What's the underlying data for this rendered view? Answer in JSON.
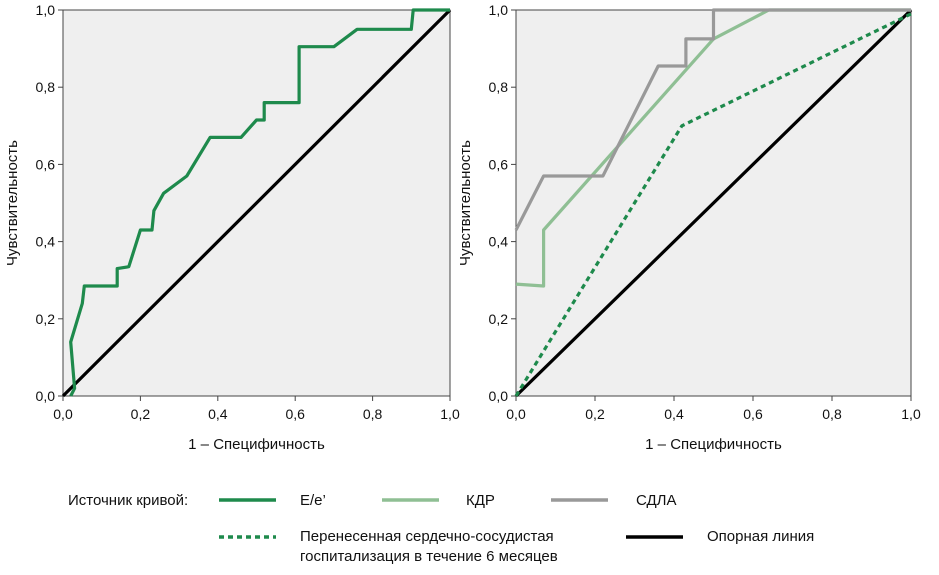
{
  "chart_data": [
    {
      "type": "line",
      "xlabel": "1 – Специфичность",
      "ylabel": "Чувствительность",
      "xlim": [
        0,
        1
      ],
      "ylim": [
        0,
        1
      ],
      "tick_labels": [
        "0,0",
        "0,2",
        "0,4",
        "0,6",
        "0,8",
        "1,0"
      ],
      "grid": false,
      "series": [
        {
          "name": "E/e’",
          "color": "#1e8a4c",
          "style": "solid",
          "points": [
            [
              0.02,
              0.0
            ],
            [
              0.03,
              0.02
            ],
            [
              0.02,
              0.14
            ],
            [
              0.05,
              0.24
            ],
            [
              0.055,
              0.285
            ],
            [
              0.06,
              0.285
            ],
            [
              0.14,
              0.285
            ],
            [
              0.14,
              0.33
            ],
            [
              0.17,
              0.335
            ],
            [
              0.2,
              0.43
            ],
            [
              0.23,
              0.43
            ],
            [
              0.235,
              0.48
            ],
            [
              0.26,
              0.525
            ],
            [
              0.32,
              0.57
            ],
            [
              0.38,
              0.67
            ],
            [
              0.46,
              0.67
            ],
            [
              0.5,
              0.715
            ],
            [
              0.52,
              0.715
            ],
            [
              0.52,
              0.76
            ],
            [
              0.61,
              0.76
            ],
            [
              0.61,
              0.905
            ],
            [
              0.7,
              0.905
            ],
            [
              0.76,
              0.95
            ],
            [
              0.9,
              0.95
            ],
            [
              0.905,
              1.0
            ],
            [
              1.0,
              1.0
            ]
          ]
        },
        {
          "name": "Опорная линия",
          "color": "#000000",
          "style": "solid",
          "points": [
            [
              0,
              0
            ],
            [
              1,
              1
            ]
          ]
        }
      ]
    },
    {
      "type": "line",
      "xlabel": "1 – Специфичность",
      "ylabel": "Чувствительность",
      "xlim": [
        0,
        1
      ],
      "ylim": [
        0,
        1
      ],
      "tick_labels": [
        "0,0",
        "0,2",
        "0,4",
        "0,6",
        "0,8",
        "1,0"
      ],
      "grid": false,
      "series": [
        {
          "name": "КДР",
          "color": "#8fbf94",
          "style": "solid",
          "points": [
            [
              0,
              0.29
            ],
            [
              0.07,
              0.285
            ],
            [
              0.07,
              0.43
            ],
            [
              0.5,
              0.925
            ],
            [
              0.64,
              1.0
            ],
            [
              1.0,
              1.0
            ]
          ]
        },
        {
          "name": "СДЛА",
          "color": "#999999",
          "style": "solid",
          "points": [
            [
              0,
              0.43
            ],
            [
              0.07,
              0.57
            ],
            [
              0.22,
              0.57
            ],
            [
              0.36,
              0.855
            ],
            [
              0.43,
              0.855
            ],
            [
              0.43,
              0.925
            ],
            [
              0.5,
              0.925
            ],
            [
              0.5,
              1.0
            ],
            [
              1.0,
              1.0
            ]
          ]
        },
        {
          "name": "Перенесенная сердечно-сосудистая госпитализация в течение 6 месяцев",
          "color": "#1e8a4c",
          "style": "dashed",
          "points": [
            [
              0,
              0
            ],
            [
              0.42,
              0.7
            ],
            [
              1.0,
              0.99
            ]
          ]
        },
        {
          "name": "Опорная линия",
          "color": "#000000",
          "style": "solid",
          "points": [
            [
              0,
              0
            ],
            [
              1,
              1
            ]
          ]
        }
      ]
    }
  ],
  "legend": {
    "title": "Источник кривой:",
    "items": [
      {
        "label": "E/e’",
        "color": "#1e8a4c",
        "style": "solid"
      },
      {
        "label": "КДР",
        "color": "#8fbf94",
        "style": "solid"
      },
      {
        "label": "СДЛА",
        "color": "#999999",
        "style": "solid"
      },
      {
        "label_lines": [
          "Перенесенная сердечно-сосудистая",
          "госпитализация в течение 6 месяцев"
        ],
        "color": "#1e8a4c",
        "style": "dashed"
      },
      {
        "label": "Опорная линия",
        "color": "#000000",
        "style": "solid"
      }
    ]
  }
}
